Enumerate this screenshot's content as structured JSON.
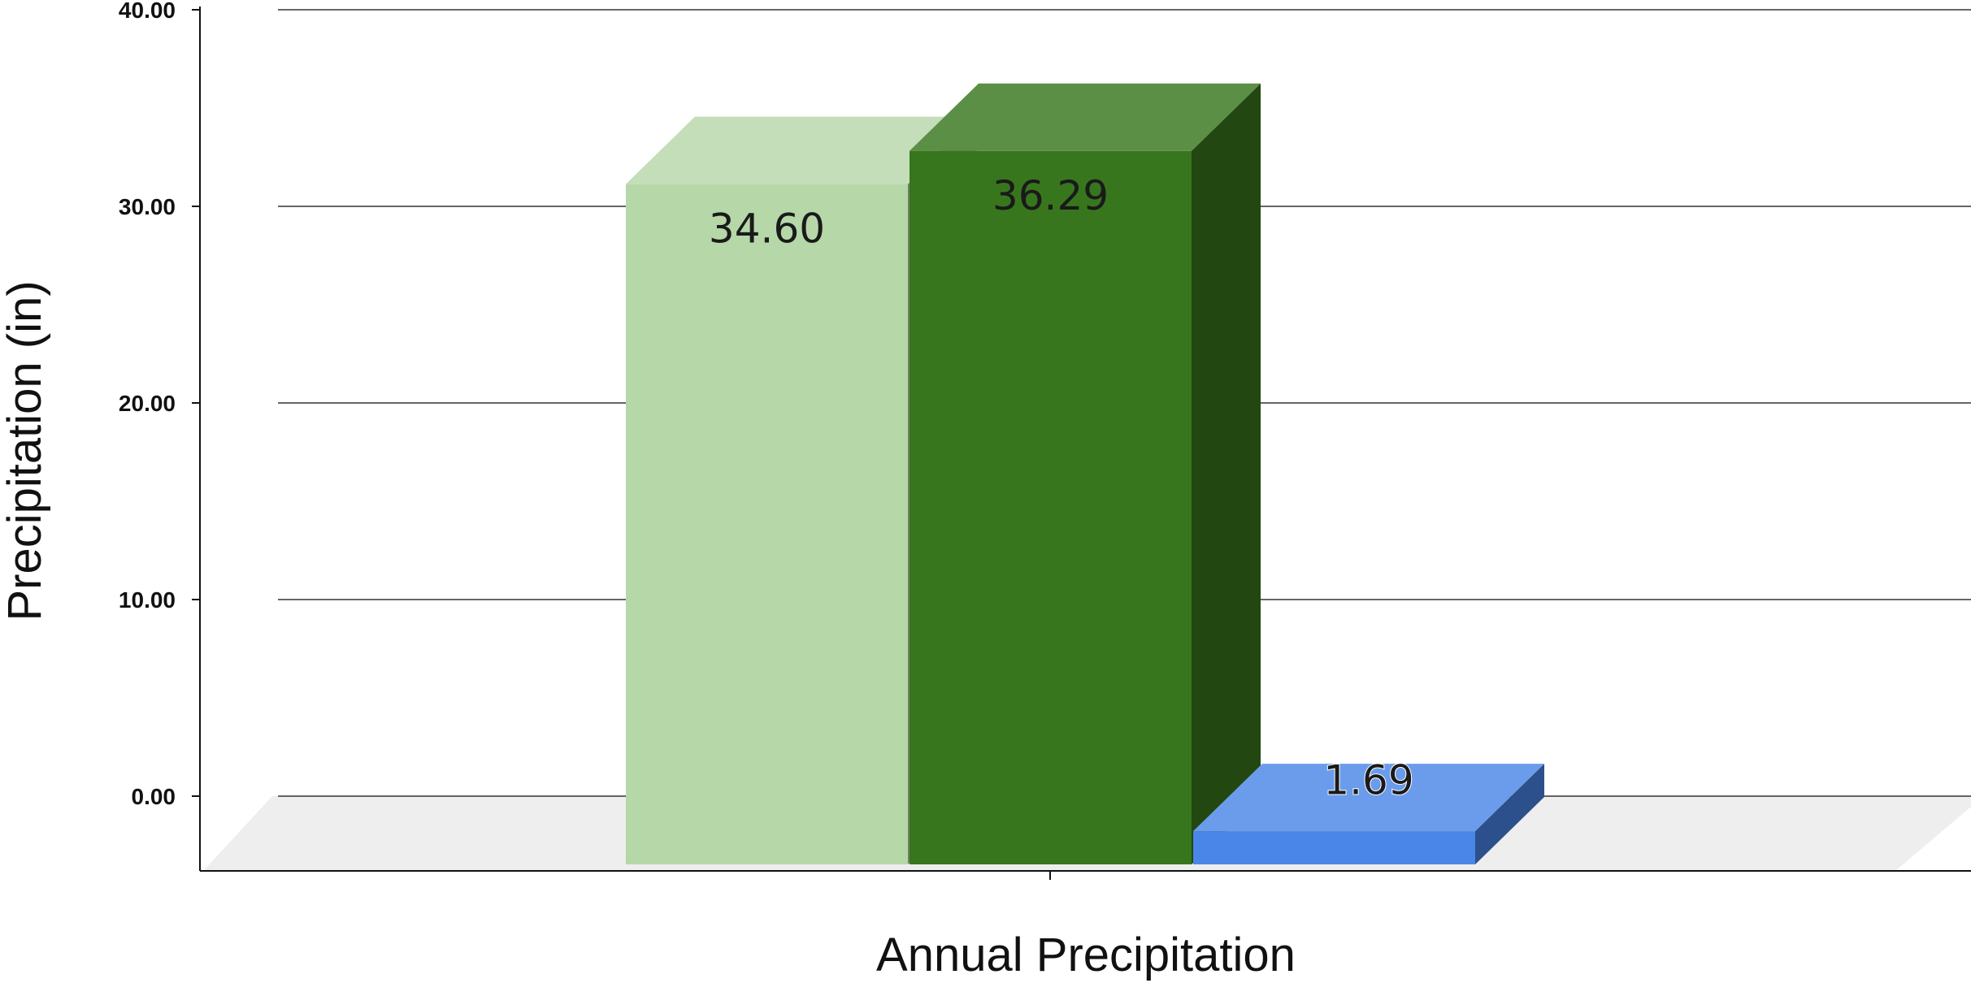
{
  "chart_data": {
    "type": "bar",
    "categories": [
      "Annual Precipitation"
    ],
    "series": [
      {
        "values": [
          34.6
        ],
        "label": "34.60",
        "color": "#b6d7a8"
      },
      {
        "values": [
          36.29
        ],
        "label": "36.29",
        "color": "#38761d"
      },
      {
        "values": [
          1.69
        ],
        "label": "1.69",
        "color": "#4a86e8"
      }
    ],
    "title": "",
    "xlabel": "Annual Precipitation",
    "ylabel": "Precipitation (in)",
    "ylim": [
      0,
      40
    ],
    "yticks": [
      "0.00",
      "10.00",
      "20.00",
      "30.00",
      "40.00"
    ],
    "grid": true,
    "style": "3d-column"
  }
}
